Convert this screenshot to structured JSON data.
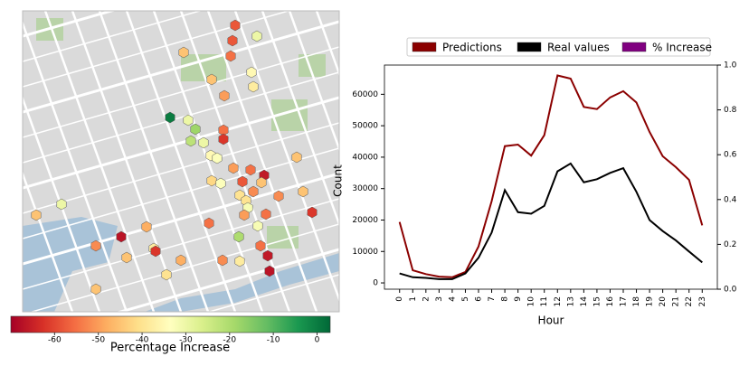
{
  "chart_data": [
    {
      "type": "hexmap",
      "colormap": "RdYlGn",
      "colorbar_label": "Percentage Increase",
      "clim": [
        -70,
        3
      ],
      "cticks": [
        -60,
        -50,
        -40,
        -30,
        -20,
        -10,
        0
      ],
      "values": [
        -58,
        -58,
        -30,
        -45,
        -55,
        -35,
        -45,
        -38,
        -50,
        0,
        -30,
        -18,
        -55,
        -22,
        -30,
        -62,
        -35,
        -33,
        -50,
        -55,
        -66,
        -45,
        -45,
        -42,
        -33,
        -58,
        -52,
        -40,
        -52,
        -45,
        -62,
        -40,
        -32,
        -30,
        -45,
        -50,
        -55,
        -32,
        -55,
        -48,
        -20,
        -67,
        -52,
        -38,
        -62,
        -55,
        -66,
        -45,
        -52,
        -38,
        -48,
        -67,
        -40,
        -45
      ]
    },
    {
      "type": "line",
      "x": [
        0,
        1,
        2,
        3,
        4,
        5,
        6,
        7,
        8,
        9,
        10,
        11,
        12,
        13,
        14,
        15,
        16,
        17,
        18,
        19,
        20,
        21,
        22,
        23
      ],
      "xticks": [
        0,
        1,
        2,
        3,
        4,
        5,
        6,
        7,
        8,
        9,
        10,
        11,
        12,
        13,
        14,
        15,
        16,
        17,
        18,
        19,
        20,
        21,
        22,
        23
      ],
      "xlabel": "Hour",
      "ylabel": "Count",
      "xlim": [
        -1.15,
        24.15
      ],
      "ylim": [
        -2000,
        69300
      ],
      "yticks": [
        0,
        10000,
        20000,
        30000,
        40000,
        50000,
        60000
      ],
      "y2lim": [
        0,
        1
      ],
      "y2ticks": [
        {
          "value": 0,
          "label": "0.0"
        },
        0.2,
        0.4,
        0.6,
        0.8,
        {
          "value": 1,
          "label": "1.0"
        }
      ],
      "series": [
        {
          "name": "Predictions",
          "color": "#8b0000",
          "values": [
            19400,
            4000,
            2800,
            2000,
            1800,
            3500,
            11600,
            26000,
            43500,
            44000,
            40500,
            47000,
            66000,
            65000,
            56000,
            55300,
            59000,
            61000,
            57400,
            48000,
            40300,
            36800,
            32800,
            18300
          ]
        },
        {
          "name": "Real values",
          "color": "#000000",
          "values": [
            3000,
            1800,
            1600,
            1200,
            1200,
            3000,
            8000,
            16000,
            29500,
            22500,
            22000,
            24500,
            35500,
            38000,
            32000,
            33000,
            35000,
            36500,
            29000,
            20000,
            16500,
            13500,
            10000,
            6500
          ]
        },
        {
          "name": "% Increase",
          "color": "#800080",
          "axis": "y2",
          "values": [
            null,
            null,
            null,
            null,
            null,
            null,
            null,
            null,
            null,
            null,
            null,
            null,
            null,
            null,
            null,
            null,
            null,
            null,
            null,
            null,
            null,
            null,
            null,
            null
          ]
        }
      ]
    }
  ]
}
